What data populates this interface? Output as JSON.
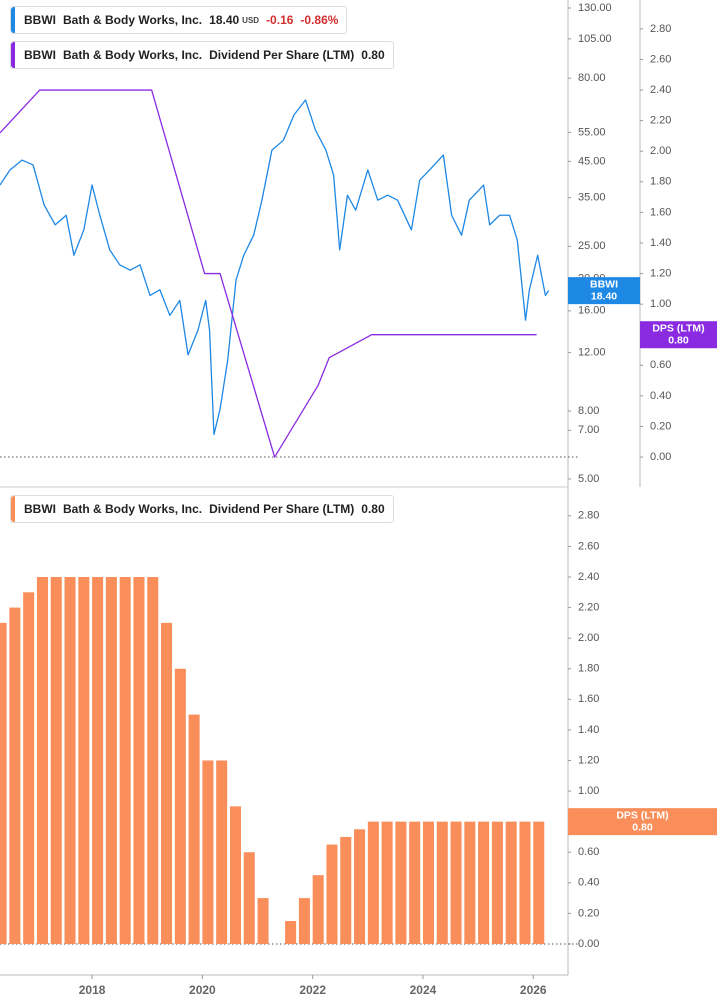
{
  "chart_data": [
    {
      "type": "line",
      "xlim": [
        2016.33,
        2026.63
      ],
      "ylog": true,
      "ylim": [
        4.73,
        137.4
      ],
      "yticks": [
        {
          "value": 5,
          "label": "5.00"
        },
        {
          "value": 7,
          "label": "7.00"
        },
        {
          "value": 8,
          "label": "8.00"
        },
        {
          "value": 12,
          "label": "12.00"
        },
        {
          "value": 16,
          "label": "16.00"
        },
        {
          "value": 20,
          "label": "20.00"
        },
        {
          "value": 25,
          "label": "25.00"
        },
        {
          "value": 35,
          "label": "35.00"
        },
        {
          "value": 45,
          "label": "45.00"
        },
        {
          "value": 55,
          "label": "55.00"
        },
        {
          "value": 80,
          "label": "80.00"
        },
        {
          "value": 105,
          "label": "105.00"
        },
        {
          "value": 130,
          "label": "130.00"
        }
      ],
      "y2lim": [
        -0.196,
        2.989
      ],
      "y2ticks": [
        {
          "value": 0,
          "label": "0.00"
        },
        {
          "value": 0.2,
          "label": "0.20"
        },
        {
          "value": 0.4,
          "label": "0.40"
        },
        {
          "value": 0.6,
          "label": "0.60"
        },
        {
          "value": 0.8,
          "label": "0.80"
        },
        {
          "value": 1,
          "label": "1.00"
        },
        {
          "value": 1.2,
          "label": "1.20"
        },
        {
          "value": 1.4,
          "label": "1.40"
        },
        {
          "value": 1.6,
          "label": "1.60"
        },
        {
          "value": 1.8,
          "label": "1.80"
        },
        {
          "value": 2,
          "label": "2.00"
        },
        {
          "value": 2.2,
          "label": "2.20"
        },
        {
          "value": 2.4,
          "label": "2.40"
        },
        {
          "value": 2.6,
          "label": "2.60"
        },
        {
          "value": 2.8,
          "label": "2.80"
        }
      ],
      "zero_line": "y2",
      "series": [
        {
          "symbol": "BBWI",
          "name": "Bath & Body Works, Inc.",
          "last": "18.40",
          "unit": "USD",
          "change": "-0.16",
          "change_percent": "-0.86%",
          "end_label": "BBWI",
          "color": "#1e88e5",
          "axis": "y",
          "x": [
            2016.33,
            2016.51,
            2016.73,
            2016.93,
            2017.13,
            2017.33,
            2017.53,
            2017.67,
            2017.85,
            2018.0,
            2018.14,
            2018.32,
            2018.5,
            2018.69,
            2018.87,
            2019.05,
            2019.23,
            2019.41,
            2019.59,
            2019.74,
            2019.92,
            2020.06,
            2020.13,
            2020.21,
            2020.32,
            2020.46,
            2020.61,
            2020.75,
            2020.93,
            2021.08,
            2021.26,
            2021.47,
            2021.66,
            2021.87,
            2022.05,
            2022.24,
            2022.38,
            2022.49,
            2022.63,
            2022.78,
            2023.0,
            2023.18,
            2023.36,
            2023.54,
            2023.79,
            2023.94,
            2024.12,
            2024.37,
            2024.52,
            2024.7,
            2024.84,
            2025.1,
            2025.21,
            2025.39,
            2025.57,
            2025.71,
            2025.86,
            2025.93,
            2026.08,
            2026.22,
            2026.28
          ],
          "values": [
            38.2,
            42.4,
            45.4,
            43.9,
            33.3,
            29.0,
            31.0,
            23.5,
            28.0,
            38.2,
            31.0,
            24.4,
            22.0,
            21.2,
            22.0,
            17.8,
            18.5,
            15.5,
            17.2,
            11.8,
            14.0,
            17.2,
            14.0,
            6.8,
            8.1,
            11.4,
            19.8,
            23.5,
            27.0,
            34.4,
            48.6,
            52.1,
            62.0,
            68.8,
            55.9,
            48.6,
            40.9,
            24.4,
            35.6,
            32.1,
            42.4,
            34.4,
            35.6,
            34.4,
            28.0,
            39.5,
            42.4,
            47.0,
            31.0,
            27.0,
            34.4,
            38.2,
            29.0,
            31.0,
            31.0,
            26.1,
            15.0,
            18.5,
            23.5,
            17.8,
            18.4
          ]
        },
        {
          "symbol": "BBWI",
          "name": "Bath & Body Works, Inc.",
          "metric": "Dividend Per Share (LTM)",
          "last": "0.80",
          "end_label": "DPS (LTM)",
          "color": "#8a2be2",
          "axis": "y2",
          "x": [
            2016.33,
            2017.05,
            2019.08,
            2020.04,
            2020.32,
            2021.31,
            2022.1,
            2022.3,
            2023.07,
            2026.06
          ],
          "values": [
            2.12,
            2.4,
            2.4,
            1.2,
            1.2,
            0,
            0.47,
            0.65,
            0.8,
            0.8
          ]
        }
      ]
    },
    {
      "type": "bar",
      "xlim": [
        2016.33,
        2026.63
      ],
      "xticks": [
        2018,
        2020,
        2022,
        2024,
        2026
      ],
      "ylim": [
        -0.203,
        2.969
      ],
      "yticks": [
        {
          "value": 0,
          "label": "0.00"
        },
        {
          "value": 0.2,
          "label": "0.20"
        },
        {
          "value": 0.4,
          "label": "0.40"
        },
        {
          "value": 0.6,
          "label": "0.60"
        },
        {
          "value": 0.8,
          "label": "0.80"
        },
        {
          "value": 1,
          "label": "1.00"
        },
        {
          "value": 1.2,
          "label": "1.20"
        },
        {
          "value": 1.4,
          "label": "1.40"
        },
        {
          "value": 1.6,
          "label": "1.60"
        },
        {
          "value": 1.8,
          "label": "1.80"
        },
        {
          "value": 2,
          "label": "2.00"
        },
        {
          "value": 2.2,
          "label": "2.20"
        },
        {
          "value": 2.4,
          "label": "2.40"
        },
        {
          "value": 2.6,
          "label": "2.60"
        },
        {
          "value": 2.8,
          "label": "2.80"
        }
      ],
      "zero_line": "y",
      "series": [
        {
          "symbol": "BBWI",
          "name": "Bath & Body Works, Inc.",
          "metric": "Dividend Per Share (LTM)",
          "last": "0.80",
          "end_label": "DPS (LTM)",
          "color": "#f98e5a",
          "axis": "y",
          "x": [
            2016.35,
            2016.6,
            2016.85,
            2017.1,
            2017.35,
            2017.6,
            2017.85,
            2018.1,
            2018.35,
            2018.6,
            2018.85,
            2019.1,
            2019.35,
            2019.6,
            2019.85,
            2020.1,
            2020.35,
            2020.6,
            2020.85,
            2021.1,
            2021.35,
            2021.6,
            2021.85,
            2022.1,
            2022.35,
            2022.6,
            2022.85,
            2023.1,
            2023.35,
            2023.6,
            2023.85,
            2024.1,
            2024.35,
            2024.6,
            2024.85,
            2025.1,
            2025.35,
            2025.6,
            2025.85,
            2026.1
          ],
          "values": [
            2.1,
            2.2,
            2.3,
            2.4,
            2.4,
            2.4,
            2.4,
            2.4,
            2.4,
            2.4,
            2.4,
            2.4,
            2.1,
            1.8,
            1.5,
            1.2,
            1.2,
            0.9,
            0.6,
            0.3,
            0,
            0.15,
            0.3,
            0.45,
            0.65,
            0.7,
            0.75,
            0.8,
            0.8,
            0.8,
            0.8,
            0.8,
            0.8,
            0.8,
            0.8,
            0.8,
            0.8,
            0.8,
            0.8,
            0.8
          ]
        }
      ]
    }
  ]
}
